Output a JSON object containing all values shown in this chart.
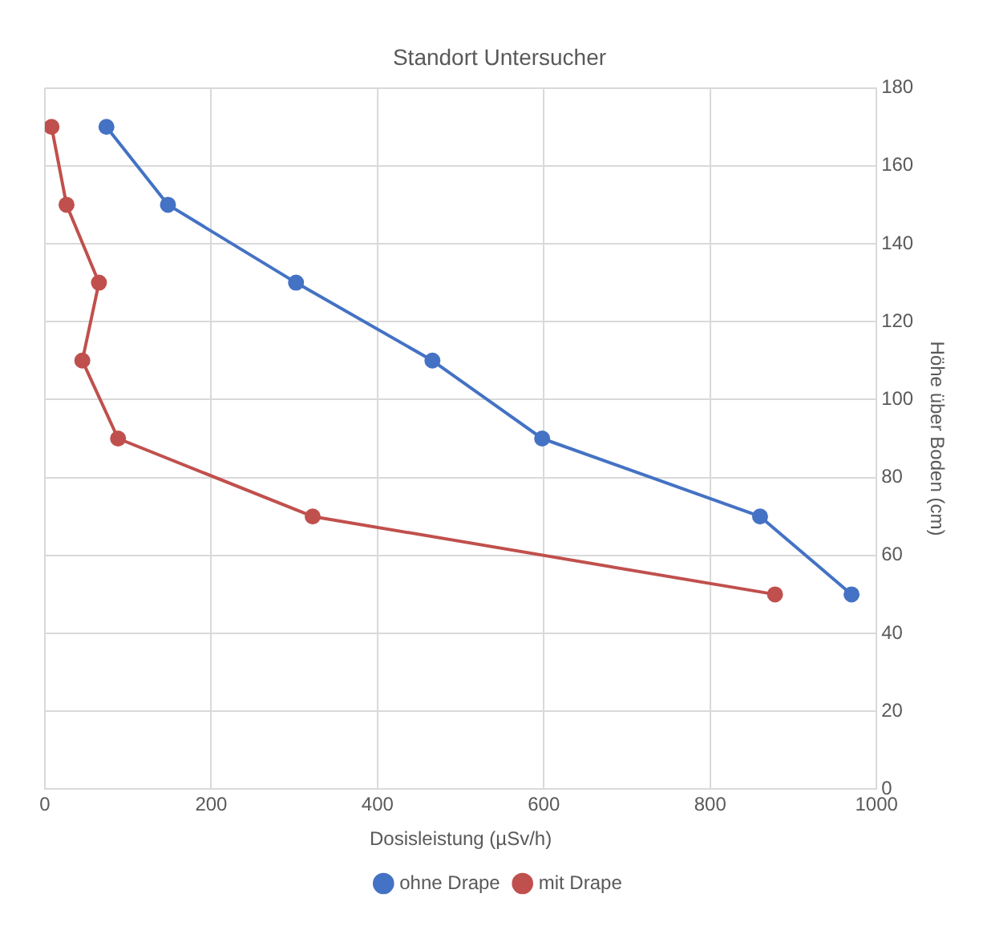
{
  "chart_data": {
    "type": "line",
    "title": "Standort Untersucher",
    "xlabel": "Dosisleistung (µSv/h)",
    "ylabel": "Höhe über Boden (cm)",
    "xlim": [
      0,
      1000
    ],
    "xticks": [
      0,
      200,
      400,
      600,
      800,
      1000
    ],
    "ylim": [
      0,
      180
    ],
    "yticks": [
      0,
      20,
      40,
      60,
      80,
      100,
      120,
      140,
      160,
      180
    ],
    "grid": true,
    "legend": "bottom",
    "marker": "circle",
    "series": [
      {
        "name": "ohne Drape",
        "color": "#4472c4",
        "x": [
          74,
          148,
          302,
          466,
          598,
          860,
          970
        ],
        "values": [
          170,
          150,
          130,
          110,
          90,
          70,
          50
        ]
      },
      {
        "name": "mit Drape",
        "color": "#c0504d",
        "x": [
          8,
          26,
          65,
          45,
          88,
          322,
          878
        ],
        "values": [
          170,
          150,
          130,
          110,
          90,
          70,
          50
        ]
      }
    ]
  }
}
